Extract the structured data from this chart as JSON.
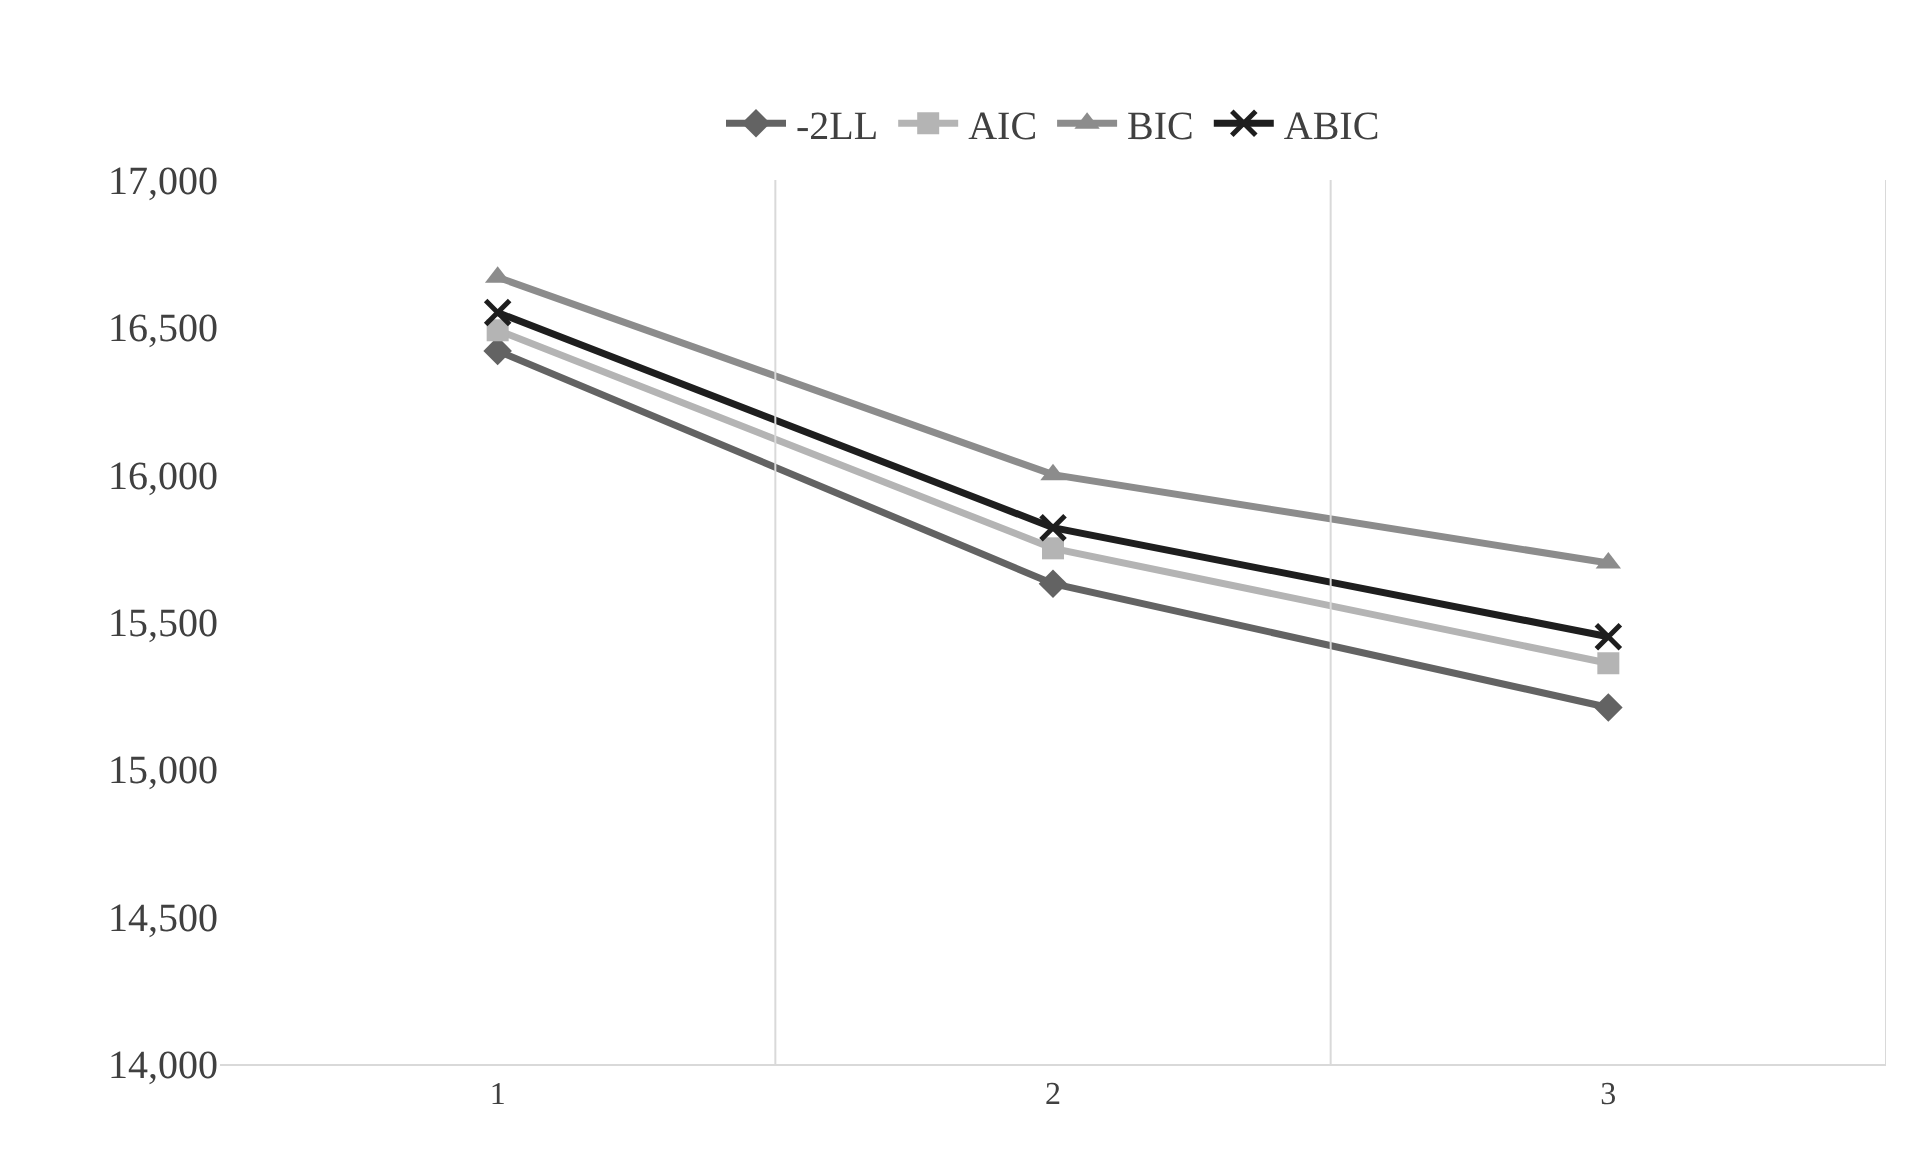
{
  "chart_data": {
    "type": "line",
    "categories": [
      "1",
      "2",
      "3"
    ],
    "series": [
      {
        "name": "-2LL",
        "color": "#636363",
        "marker": "diamond",
        "values": [
          16420,
          15630,
          15210
        ]
      },
      {
        "name": "AIC",
        "color": "#b4b4b4",
        "marker": "square",
        "values": [
          16490,
          15750,
          15360
        ]
      },
      {
        "name": "BIC",
        "color": "#8c8c8c",
        "marker": "triangle",
        "values": [
          16670,
          16000,
          15700
        ]
      },
      {
        "name": "ABIC",
        "color": "#1e1e1e",
        "marker": "cross",
        "values": [
          16550,
          15820,
          15450
        ]
      }
    ],
    "ylim": [
      14000,
      17000
    ],
    "yticks": [
      {
        "value": 14000,
        "label": "14,000"
      },
      {
        "value": 14500,
        "label": "14,500"
      },
      {
        "value": 15000,
        "label": "15,000"
      },
      {
        "value": 15500,
        "label": "15,500"
      },
      {
        "value": 16000,
        "label": "16,000"
      },
      {
        "value": 16500,
        "label": "16,500"
      },
      {
        "value": 17000,
        "label": "17,000"
      }
    ],
    "grid": "x",
    "legend": "top",
    "line_style": "solid"
  }
}
